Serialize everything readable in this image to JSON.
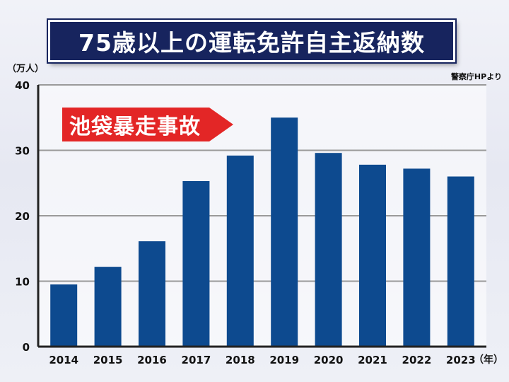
{
  "title": "75歳以上の運転免許自主返納数",
  "unit_label": "（万人）",
  "source": "警察庁HPより",
  "x_unit_label": "（年）",
  "callout": "池袋暴走事故",
  "colors": {
    "bar": "#0d4a8f",
    "title_bg": "#17245e",
    "callout": "#e32626"
  },
  "chart_data": {
    "type": "bar",
    "title": "75歳以上の運転免許自主返納数",
    "ylabel": "（万人）",
    "xlabel": "（年）",
    "categories": [
      "2014",
      "2015",
      "2016",
      "2017",
      "2018",
      "2019",
      "2020",
      "2021",
      "2022",
      "2023"
    ],
    "values": [
      9.5,
      12.2,
      16.1,
      25.3,
      29.2,
      35.0,
      29.6,
      27.8,
      27.2,
      26.0
    ],
    "ylim": [
      0,
      40
    ],
    "yticks": [
      0,
      10,
      20,
      30,
      40
    ],
    "grid": true,
    "annotation": {
      "text": "池袋暴走事故",
      "target_category": "2019"
    }
  }
}
